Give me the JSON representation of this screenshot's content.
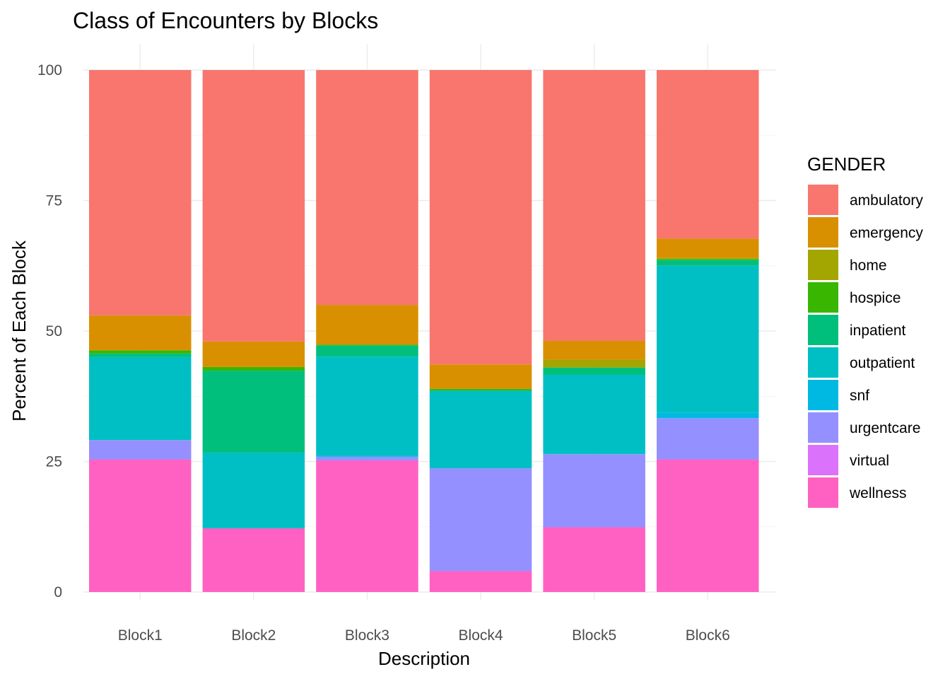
{
  "chart_data": {
    "type": "bar",
    "stacked": true,
    "title": "Class of Encounters by Blocks",
    "xlabel": "Description",
    "ylabel": "Percent of Each Block",
    "ylim": [
      0,
      100
    ],
    "yticks": [
      0,
      25,
      50,
      75,
      100
    ],
    "grid": true,
    "legend": {
      "title": "GENDER",
      "position": "right"
    },
    "categories": [
      "Block1",
      "Block2",
      "Block3",
      "Block4",
      "Block5",
      "Block6"
    ],
    "series": [
      {
        "name": "wellness",
        "color": "#FF61C3",
        "values": [
          25.4,
          12.2,
          25.2,
          4.0,
          12.4,
          25.4
        ]
      },
      {
        "name": "virtual",
        "color": "#DB72FB",
        "values": [
          0,
          0,
          0,
          0,
          0,
          0
        ]
      },
      {
        "name": "urgentcare",
        "color": "#9590FF",
        "values": [
          3.7,
          0,
          0.7,
          19.7,
          14.0,
          7.9
        ]
      },
      {
        "name": "snf",
        "color": "#00B9E3",
        "values": [
          0,
          0,
          0.2,
          0,
          0.1,
          1.0
        ]
      },
      {
        "name": "outpatient",
        "color": "#00BFC4",
        "values": [
          15.9,
          14.5,
          19.0,
          14.7,
          15.1,
          28.2
        ]
      },
      {
        "name": "inpatient",
        "color": "#00BF7D",
        "values": [
          0.7,
          15.7,
          2.1,
          0.3,
          1.4,
          1.1
        ]
      },
      {
        "name": "hospice",
        "color": "#39B600",
        "values": [
          0.6,
          0.7,
          0.2,
          0.2,
          0,
          0.2
        ]
      },
      {
        "name": "home",
        "color": "#A3A500",
        "values": [
          0,
          0,
          0,
          0,
          1.5,
          0.2
        ]
      },
      {
        "name": "emergency",
        "color": "#D89000",
        "values": [
          6.7,
          4.9,
          7.6,
          4.7,
          3.6,
          3.7
        ]
      },
      {
        "name": "ambulatory",
        "color": "#F8766D",
        "values": [
          47.0,
          52.0,
          45.0,
          56.4,
          51.9,
          32.3
        ]
      }
    ],
    "legend_order": [
      "ambulatory",
      "emergency",
      "home",
      "hospice",
      "inpatient",
      "outpatient",
      "snf",
      "urgentcare",
      "virtual",
      "wellness"
    ]
  }
}
